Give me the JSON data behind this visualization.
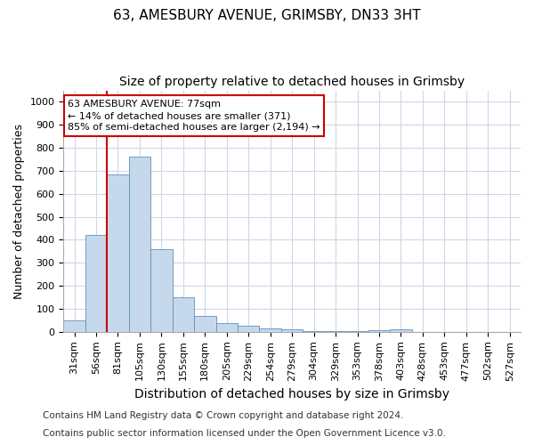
{
  "title1": "63, AMESBURY AVENUE, GRIMSBY, DN33 3HT",
  "title2": "Size of property relative to detached houses in Grimsby",
  "xlabel": "Distribution of detached houses by size in Grimsby",
  "ylabel": "Number of detached properties",
  "categories": [
    "31sqm",
    "56sqm",
    "81sqm",
    "105sqm",
    "130sqm",
    "155sqm",
    "180sqm",
    "205sqm",
    "229sqm",
    "254sqm",
    "279sqm",
    "304sqm",
    "329sqm",
    "353sqm",
    "378sqm",
    "403sqm",
    "428sqm",
    "453sqm",
    "477sqm",
    "502sqm",
    "527sqm"
  ],
  "values": [
    50,
    420,
    685,
    760,
    360,
    150,
    70,
    38,
    25,
    15,
    10,
    5,
    2,
    2,
    8,
    10,
    0,
    0,
    0,
    0,
    0
  ],
  "bar_color": "#c6d9ec",
  "bar_edge_color": "#6090b8",
  "vline_color": "#cc0000",
  "vline_x": 1.5,
  "annotation_text": "63 AMESBURY AVENUE: 77sqm\n← 14% of detached houses are smaller (371)\n85% of semi-detached houses are larger (2,194) →",
  "annotation_box_color": "#ffffff",
  "annotation_box_edge": "#cc0000",
  "ylim": [
    0,
    1050
  ],
  "yticks": [
    0,
    100,
    200,
    300,
    400,
    500,
    600,
    700,
    800,
    900,
    1000
  ],
  "grid_color": "#ccd8e8",
  "footer1": "Contains HM Land Registry data © Crown copyright and database right 2024.",
  "footer2": "Contains public sector information licensed under the Open Government Licence v3.0.",
  "title1_fontsize": 11,
  "title2_fontsize": 10,
  "xlabel_fontsize": 10,
  "ylabel_fontsize": 9,
  "tick_fontsize": 8,
  "annot_fontsize": 8,
  "footer_fontsize": 7.5
}
